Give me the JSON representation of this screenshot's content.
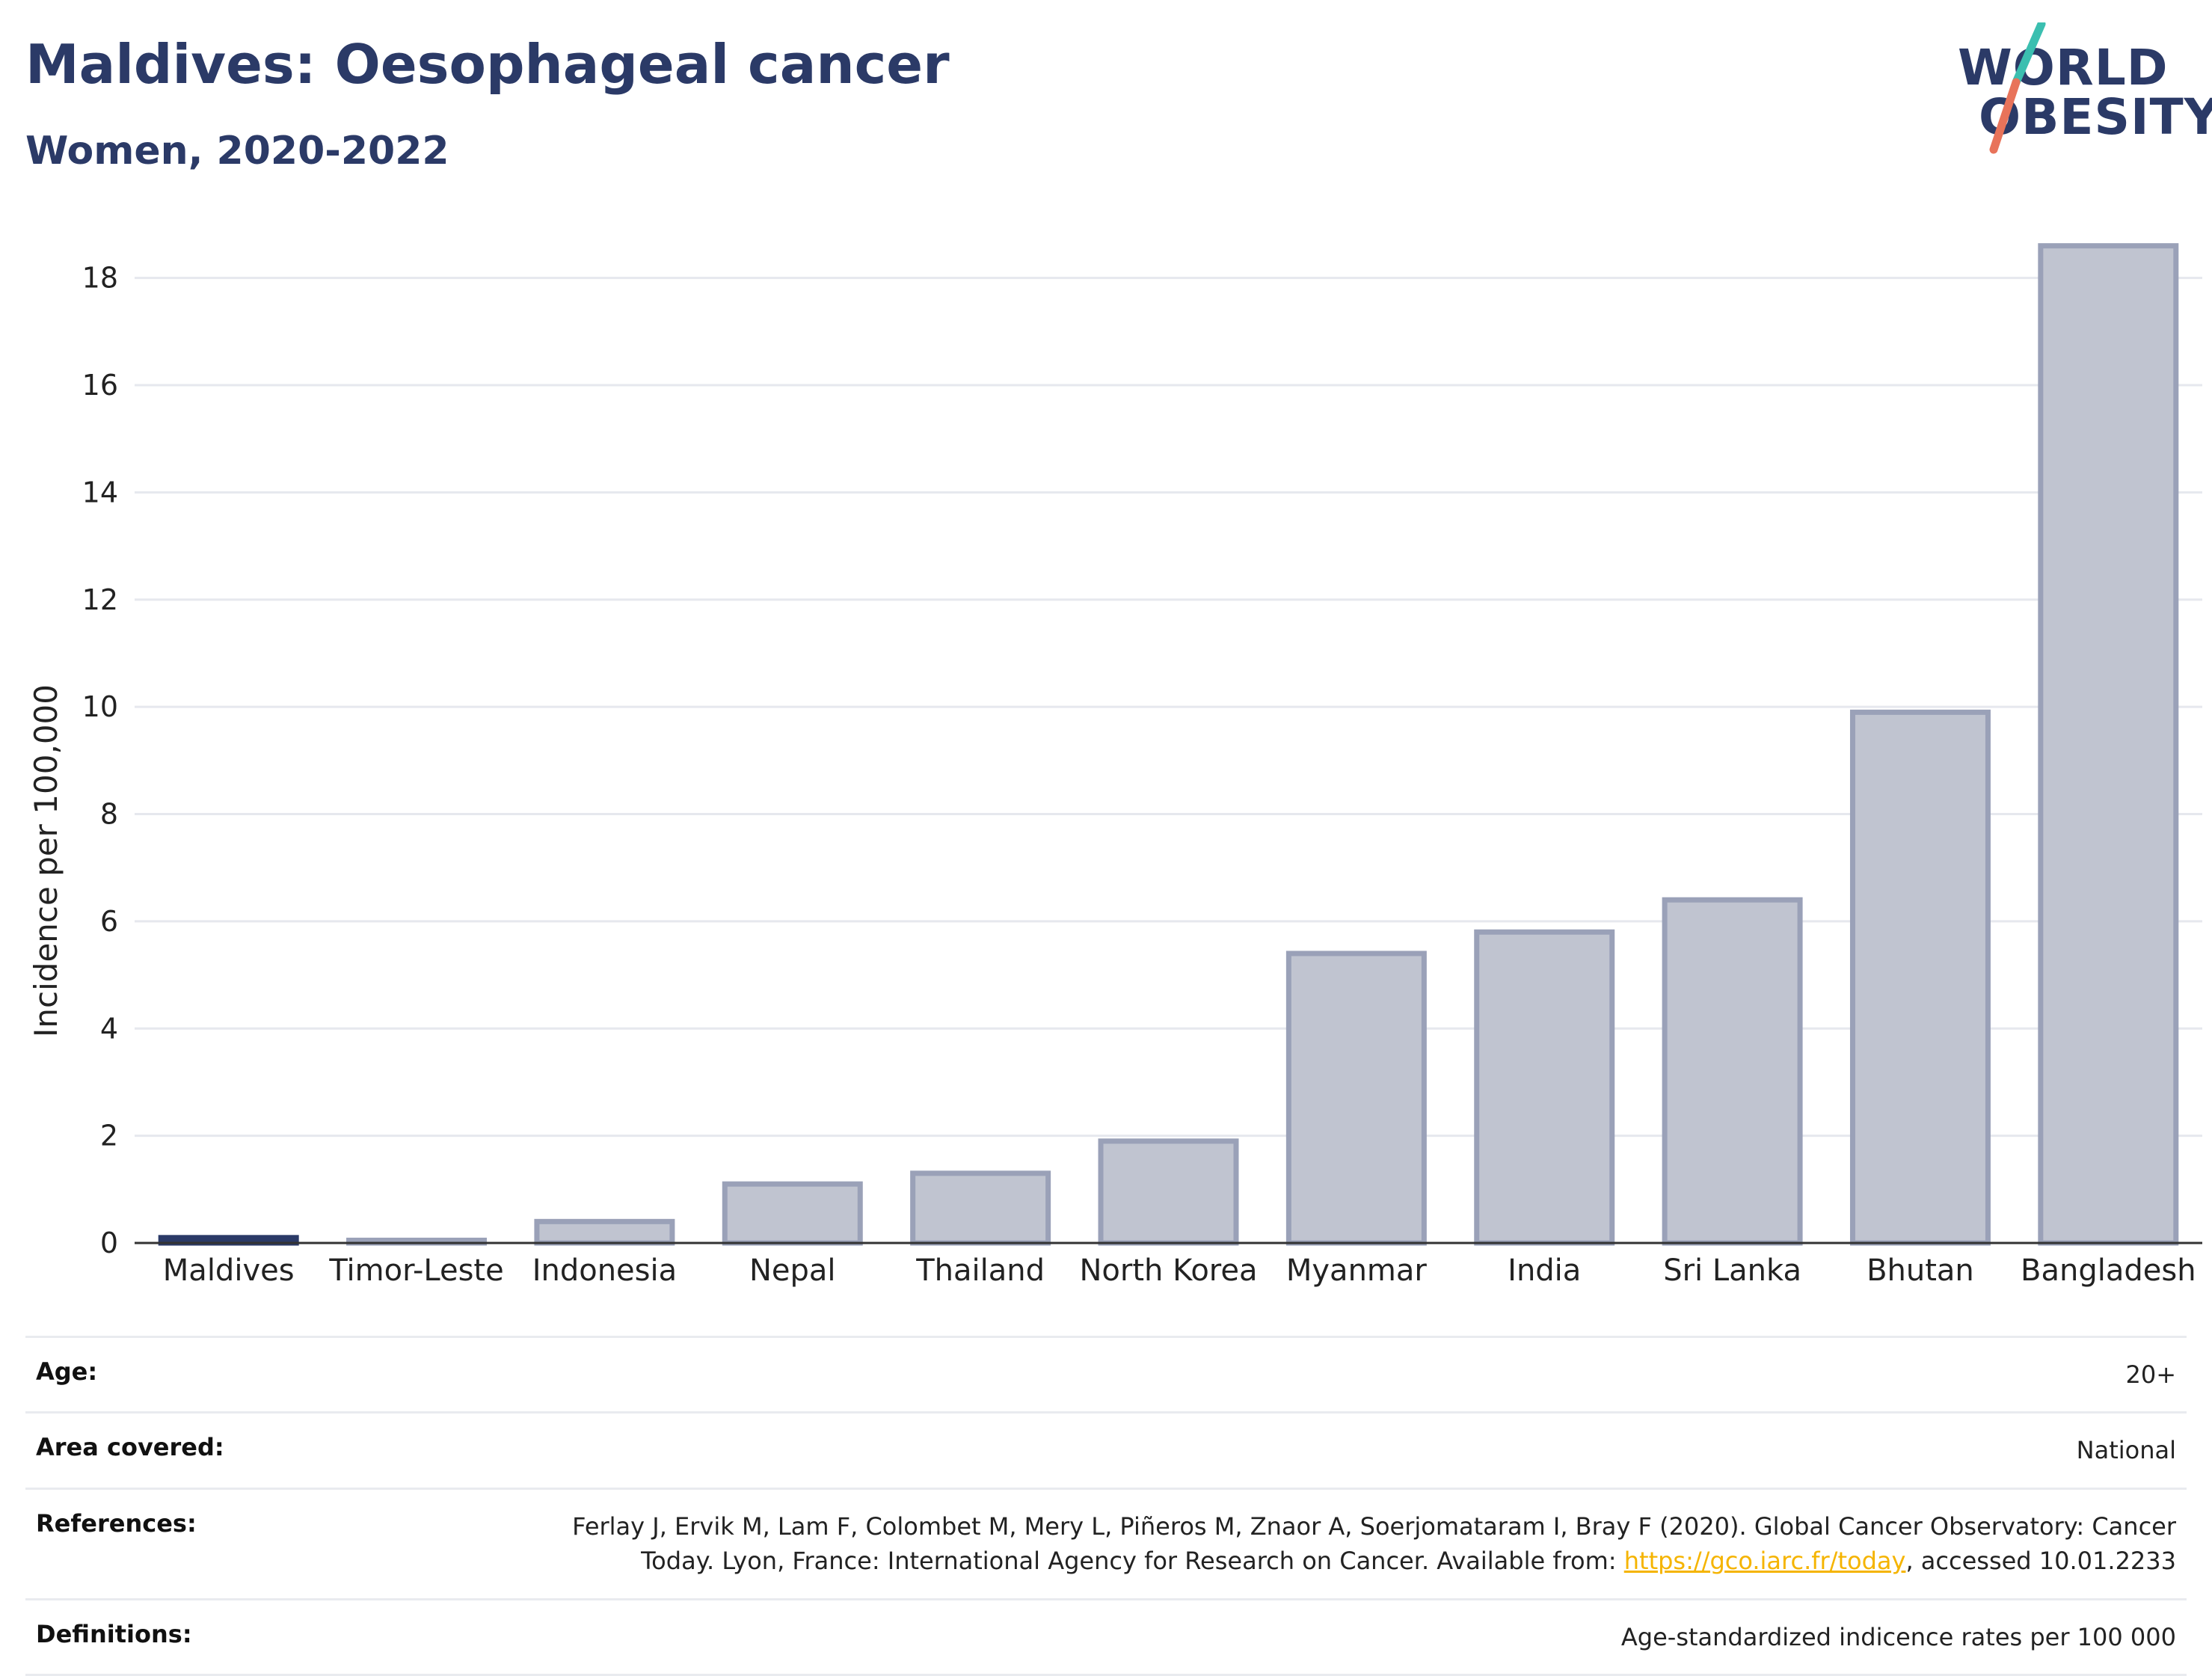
{
  "header": {
    "title": "Maldives: Oesophageal cancer",
    "subtitle": "Women, 2020-2022"
  },
  "logo": {
    "line1": "WORLD",
    "line2": "OBESITY",
    "accent_teal": "#3bbfb0",
    "accent_coral": "#e8735a",
    "text_color": "#2b3a67"
  },
  "chart_data": {
    "type": "bar",
    "title": "Maldives: Oesophageal cancer",
    "subtitle": "Women, 2020-2022",
    "xlabel": "",
    "ylabel": "Incidence per 100,000",
    "ylim": [
      0,
      19
    ],
    "yticks": [
      0,
      2,
      4,
      6,
      8,
      10,
      12,
      14,
      16,
      18
    ],
    "categories": [
      "Maldives",
      "Timor-Leste",
      "Indonesia",
      "Nepal",
      "Thailand",
      "North Korea",
      "Myanmar",
      "India",
      "Sri Lanka",
      "Bhutan",
      "Bangladesh"
    ],
    "values": [
      0.1,
      0.05,
      0.4,
      1.1,
      1.3,
      1.9,
      5.4,
      5.8,
      6.4,
      9.9,
      18.6
    ],
    "highlight": "Maldives",
    "grid": true,
    "colors": {
      "highlight_bar": "#2b3a67",
      "bar_fill": "#c0c4d0",
      "bar_stroke": "#9aa1b8",
      "grid": "#e6e8ee",
      "axis": "#333333"
    }
  },
  "info": {
    "age_label": "Age:",
    "age_value": "20+",
    "area_label": "Area covered:",
    "area_value": "National",
    "references_label": "References:",
    "references_text_1": "Ferlay J, Ervik M, Lam F, Colombet M, Mery L, Piñeros M, Znaor A, Soerjomataram I, Bray F (2020). Global Cancer Observatory: Cancer",
    "references_text_2": "Today. Lyon, France: International Agency for Research on Cancer. Available from: ",
    "references_link": "https://gco.iarc.fr/today",
    "references_text_3": ", accessed 10.01.2233",
    "definitions_label": "Definitions:",
    "definitions_value": "Age-standardized indicence rates per 100 000"
  }
}
